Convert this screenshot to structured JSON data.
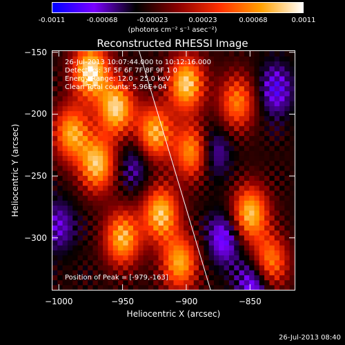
{
  "chart_data": {
    "type": "heatmap",
    "title": "Reconstructed RHESSI Image",
    "xlabel": "Heliocentric X (arcsec)",
    "ylabel": "Heliocentric Y (arcsec)",
    "xlim": [
      -1005,
      -815
    ],
    "ylim": [
      -342,
      -149
    ],
    "x_ticks": [
      "-1000",
      "-950",
      "-900",
      "-850"
    ],
    "y_ticks": [
      "-150",
      "-200",
      "-250",
      "-300"
    ],
    "colorbar": {
      "ticks": [
        "-0.0011",
        "-0.00068",
        "-0.00023",
        "0.00023",
        "0.00068",
        "0.0011"
      ],
      "range": [
        -0.0011,
        0.0011
      ],
      "unit_text": "(photons cm⁻² s⁻¹ asec⁻²)",
      "colormap": [
        "#0000ff",
        "#7a00ff",
        "#000000",
        "#8a0000",
        "#ff3000",
        "#ffa000",
        "#ffffff"
      ]
    },
    "annotations": {
      "time": "26-Jul-2013 10:07:44.000 to 10:12:16.000",
      "detectors": "Detectors: 3F 5F 6F 7F 8F 9F 1 0",
      "energy": "Energy Range: 12.0 - 25.0 keV",
      "clean": "Clean    Total counts: 5.96E+04",
      "peak": "Position of Peak = [-979,-163]"
    },
    "limb_line": [
      [
        -937,
        -149
      ],
      [
        -881,
        -342
      ]
    ],
    "bright_sources": [
      {
        "x": -975,
        "y": -165,
        "level": 0.95
      },
      {
        "x": -955,
        "y": -195,
        "level": 0.85
      },
      {
        "x": -970,
        "y": -240,
        "level": 0.8
      },
      {
        "x": -990,
        "y": -215,
        "level": 0.7
      },
      {
        "x": -950,
        "y": -300,
        "level": 0.75
      },
      {
        "x": -925,
        "y": -215,
        "level": 0.75
      },
      {
        "x": -920,
        "y": -280,
        "level": 0.8
      },
      {
        "x": -900,
        "y": -175,
        "level": 0.85
      },
      {
        "x": -895,
        "y": -230,
        "level": 0.7
      },
      {
        "x": -905,
        "y": -320,
        "level": 0.7
      },
      {
        "x": -850,
        "y": -280,
        "level": 0.8
      },
      {
        "x": -835,
        "y": -320,
        "level": 0.7
      },
      {
        "x": -860,
        "y": -190,
        "level": 0.55
      }
    ],
    "dark_regions": [
      {
        "x": -880,
        "y": -230,
        "level": -0.7
      },
      {
        "x": -870,
        "y": -300,
        "level": -0.75
      },
      {
        "x": -940,
        "y": -240,
        "level": -0.6
      },
      {
        "x": -830,
        "y": -180,
        "level": -0.7
      },
      {
        "x": -1000,
        "y": -290,
        "level": -0.6
      },
      {
        "x": -845,
        "y": -335,
        "level": -0.9
      }
    ]
  },
  "footer": {
    "timestamp": "26-Jul-2013 08:40"
  }
}
